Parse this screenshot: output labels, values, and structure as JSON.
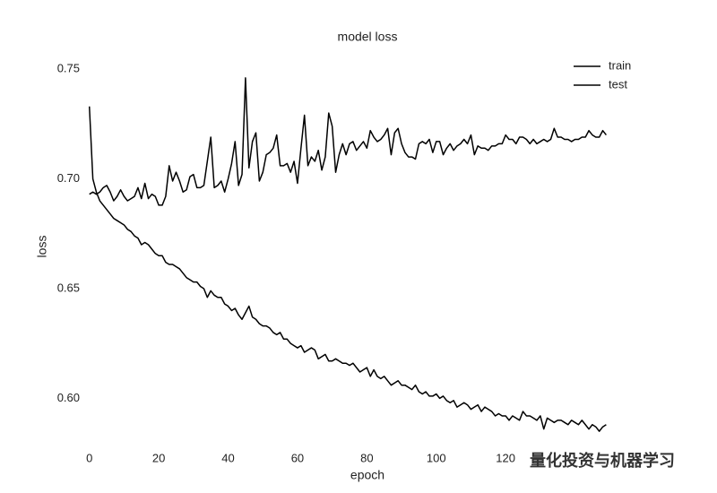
{
  "chart_data": {
    "type": "line",
    "title": "model loss",
    "x_label": "epoch",
    "y_label": "loss",
    "x": [
      0,
      1,
      2,
      3,
      4,
      5,
      6,
      7,
      8,
      9,
      10,
      11,
      12,
      13,
      14,
      15,
      16,
      17,
      18,
      19,
      20,
      21,
      22,
      23,
      24,
      25,
      26,
      27,
      28,
      29,
      30,
      31,
      32,
      33,
      34,
      35,
      36,
      37,
      38,
      39,
      40,
      41,
      42,
      43,
      44,
      45,
      46,
      47,
      48,
      49,
      50,
      51,
      52,
      53,
      54,
      55,
      56,
      57,
      58,
      59,
      60,
      61,
      62,
      63,
      64,
      65,
      66,
      67,
      68,
      69,
      70,
      71,
      72,
      73,
      74,
      75,
      76,
      77,
      78,
      79,
      80,
      81,
      82,
      83,
      84,
      85,
      86,
      87,
      88,
      89,
      90,
      91,
      92,
      93,
      94,
      95,
      96,
      97,
      98,
      99,
      100,
      101,
      102,
      103,
      104,
      105,
      106,
      107,
      108,
      109,
      110,
      111,
      112,
      113,
      114,
      115,
      116,
      117,
      118,
      119,
      120,
      121,
      122,
      123,
      124,
      125,
      126,
      127,
      128,
      129,
      130,
      131,
      132,
      133,
      134,
      135,
      136,
      137,
      138,
      139,
      140,
      141,
      142,
      143,
      144,
      145,
      146,
      147,
      148,
      149
    ],
    "series": [
      {
        "name": "train",
        "color": "#000000",
        "values": [
          0.733,
          0.7,
          0.694,
          0.69,
          0.688,
          0.686,
          0.684,
          0.682,
          0.681,
          0.68,
          0.679,
          0.677,
          0.676,
          0.674,
          0.673,
          0.67,
          0.671,
          0.67,
          0.668,
          0.666,
          0.665,
          0.665,
          0.662,
          0.661,
          0.661,
          0.66,
          0.659,
          0.657,
          0.655,
          0.654,
          0.653,
          0.653,
          0.651,
          0.65,
          0.646,
          0.649,
          0.647,
          0.646,
          0.646,
          0.643,
          0.642,
          0.64,
          0.641,
          0.638,
          0.636,
          0.639,
          0.642,
          0.637,
          0.636,
          0.634,
          0.633,
          0.633,
          0.632,
          0.63,
          0.629,
          0.63,
          0.627,
          0.627,
          0.625,
          0.624,
          0.623,
          0.624,
          0.621,
          0.622,
          0.623,
          0.622,
          0.618,
          0.619,
          0.62,
          0.617,
          0.617,
          0.618,
          0.617,
          0.616,
          0.616,
          0.615,
          0.616,
          0.614,
          0.612,
          0.613,
          0.614,
          0.61,
          0.613,
          0.61,
          0.609,
          0.61,
          0.608,
          0.606,
          0.607,
          0.608,
          0.606,
          0.606,
          0.605,
          0.604,
          0.606,
          0.603,
          0.602,
          0.603,
          0.601,
          0.601,
          0.602,
          0.6,
          0.601,
          0.599,
          0.598,
          0.599,
          0.596,
          0.597,
          0.598,
          0.597,
          0.595,
          0.596,
          0.597,
          0.594,
          0.596,
          0.595,
          0.594,
          0.592,
          0.593,
          0.592,
          0.592,
          0.59,
          0.592,
          0.591,
          0.59,
          0.594,
          0.592,
          0.592,
          0.591,
          0.59,
          0.592,
          0.586,
          0.591,
          0.59,
          0.589,
          0.59,
          0.59,
          0.589,
          0.588,
          0.59,
          0.589,
          0.588,
          0.59,
          0.588,
          0.586,
          0.588,
          0.587,
          0.585,
          0.587,
          0.588
        ]
      },
      {
        "name": "test",
        "color": "#000000",
        "values": [
          0.693,
          0.694,
          0.693,
          0.694,
          0.696,
          0.697,
          0.694,
          0.69,
          0.692,
          0.695,
          0.692,
          0.69,
          0.691,
          0.692,
          0.696,
          0.691,
          0.698,
          0.691,
          0.693,
          0.692,
          0.688,
          0.688,
          0.692,
          0.706,
          0.699,
          0.703,
          0.699,
          0.694,
          0.695,
          0.701,
          0.702,
          0.696,
          0.696,
          0.697,
          0.708,
          0.719,
          0.696,
          0.697,
          0.699,
          0.694,
          0.7,
          0.707,
          0.717,
          0.697,
          0.702,
          0.746,
          0.705,
          0.717,
          0.721,
          0.699,
          0.703,
          0.711,
          0.712,
          0.714,
          0.72,
          0.706,
          0.706,
          0.707,
          0.703,
          0.708,
          0.698,
          0.714,
          0.729,
          0.706,
          0.71,
          0.708,
          0.713,
          0.704,
          0.71,
          0.73,
          0.724,
          0.703,
          0.711,
          0.716,
          0.711,
          0.716,
          0.717,
          0.713,
          0.715,
          0.717,
          0.714,
          0.722,
          0.719,
          0.717,
          0.718,
          0.72,
          0.723,
          0.711,
          0.721,
          0.723,
          0.716,
          0.712,
          0.71,
          0.71,
          0.709,
          0.716,
          0.717,
          0.716,
          0.718,
          0.712,
          0.717,
          0.717,
          0.711,
          0.714,
          0.716,
          0.713,
          0.715,
          0.716,
          0.718,
          0.716,
          0.72,
          0.711,
          0.715,
          0.714,
          0.714,
          0.713,
          0.715,
          0.715,
          0.716,
          0.716,
          0.72,
          0.718,
          0.718,
          0.716,
          0.719,
          0.719,
          0.718,
          0.716,
          0.718,
          0.716,
          0.717,
          0.718,
          0.717,
          0.718,
          0.723,
          0.719,
          0.719,
          0.718,
          0.718,
          0.717,
          0.718,
          0.718,
          0.719,
          0.719,
          0.722,
          0.72,
          0.719,
          0.719,
          0.722,
          0.72
        ]
      }
    ],
    "xlim": [
      -2,
      152
    ],
    "xticks": [
      0,
      20,
      40,
      60,
      80,
      100,
      120
    ],
    "ylim": [
      0.583,
      0.757
    ],
    "yticks": [
      {
        "value": 0.6,
        "label": "0.60"
      },
      0.65,
      {
        "value": 0.7,
        "label": "0.70"
      },
      0.75
    ],
    "grid": false,
    "legend": "upper right",
    "watermark": "量化投资与机器学习"
  }
}
